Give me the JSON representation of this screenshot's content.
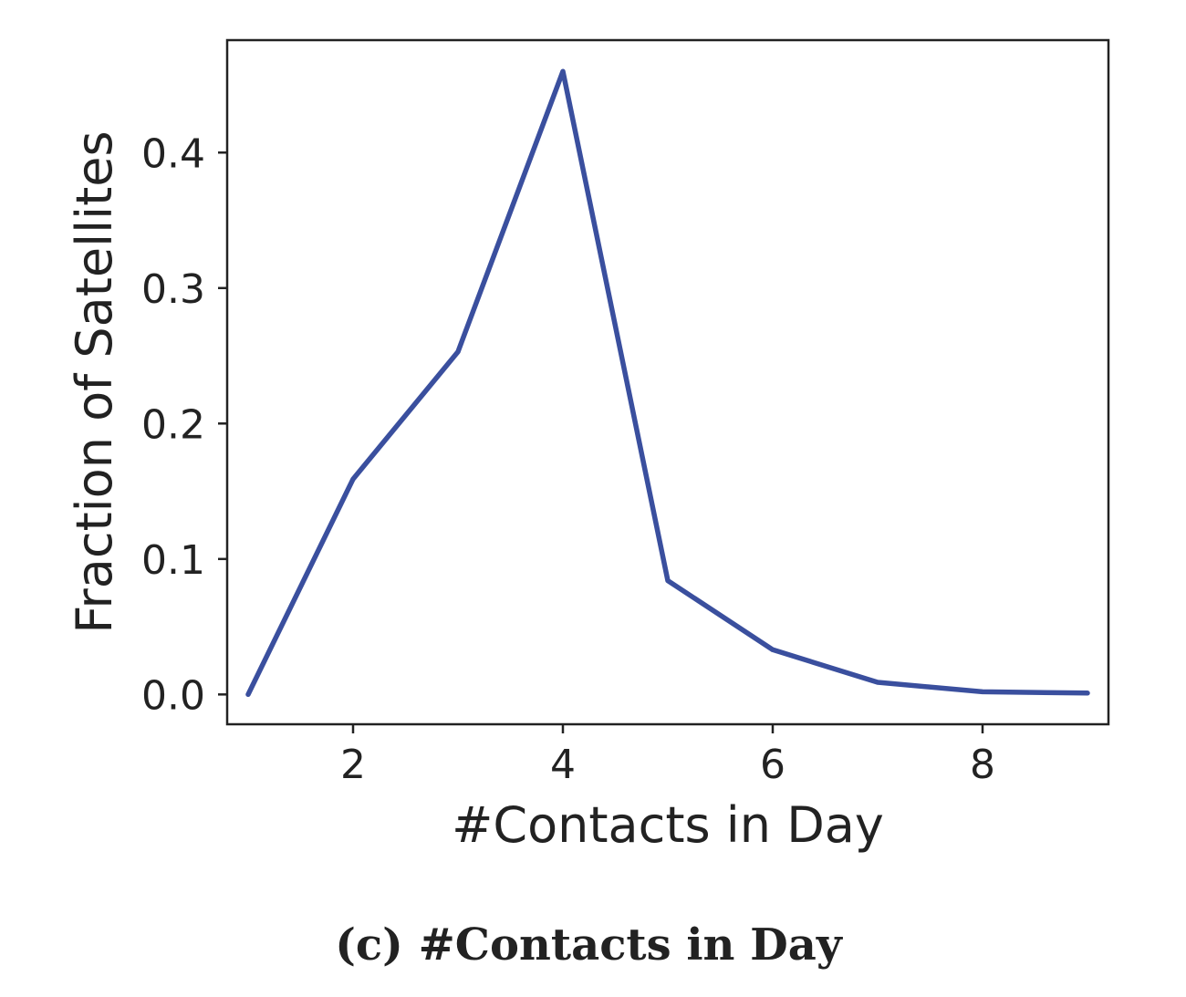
{
  "chart_data": {
    "type": "line",
    "xlabel": "#Contacts in Day",
    "ylabel": "Fraction of Satellites",
    "caption": "(c) #Contacts in Day",
    "xlim": [
      0.8,
      9.2
    ],
    "ylim": [
      -0.022,
      0.483
    ],
    "xticks": [
      2,
      4,
      6,
      8
    ],
    "xtick_labels": [
      "2",
      "4",
      "6",
      "8"
    ],
    "yticks": [
      0.0,
      0.1,
      0.2,
      0.3,
      0.4
    ],
    "ytick_labels": [
      "0.0",
      "0.1",
      "0.2",
      "0.3",
      "0.4"
    ],
    "grid": false,
    "series": [
      {
        "color": "#3a4f9e",
        "x": [
          1,
          2,
          3,
          4,
          5,
          6,
          7,
          8,
          9
        ],
        "y": [
          0.0,
          0.159,
          0.253,
          0.46,
          0.084,
          0.033,
          0.009,
          0.002,
          0.001
        ]
      }
    ]
  }
}
